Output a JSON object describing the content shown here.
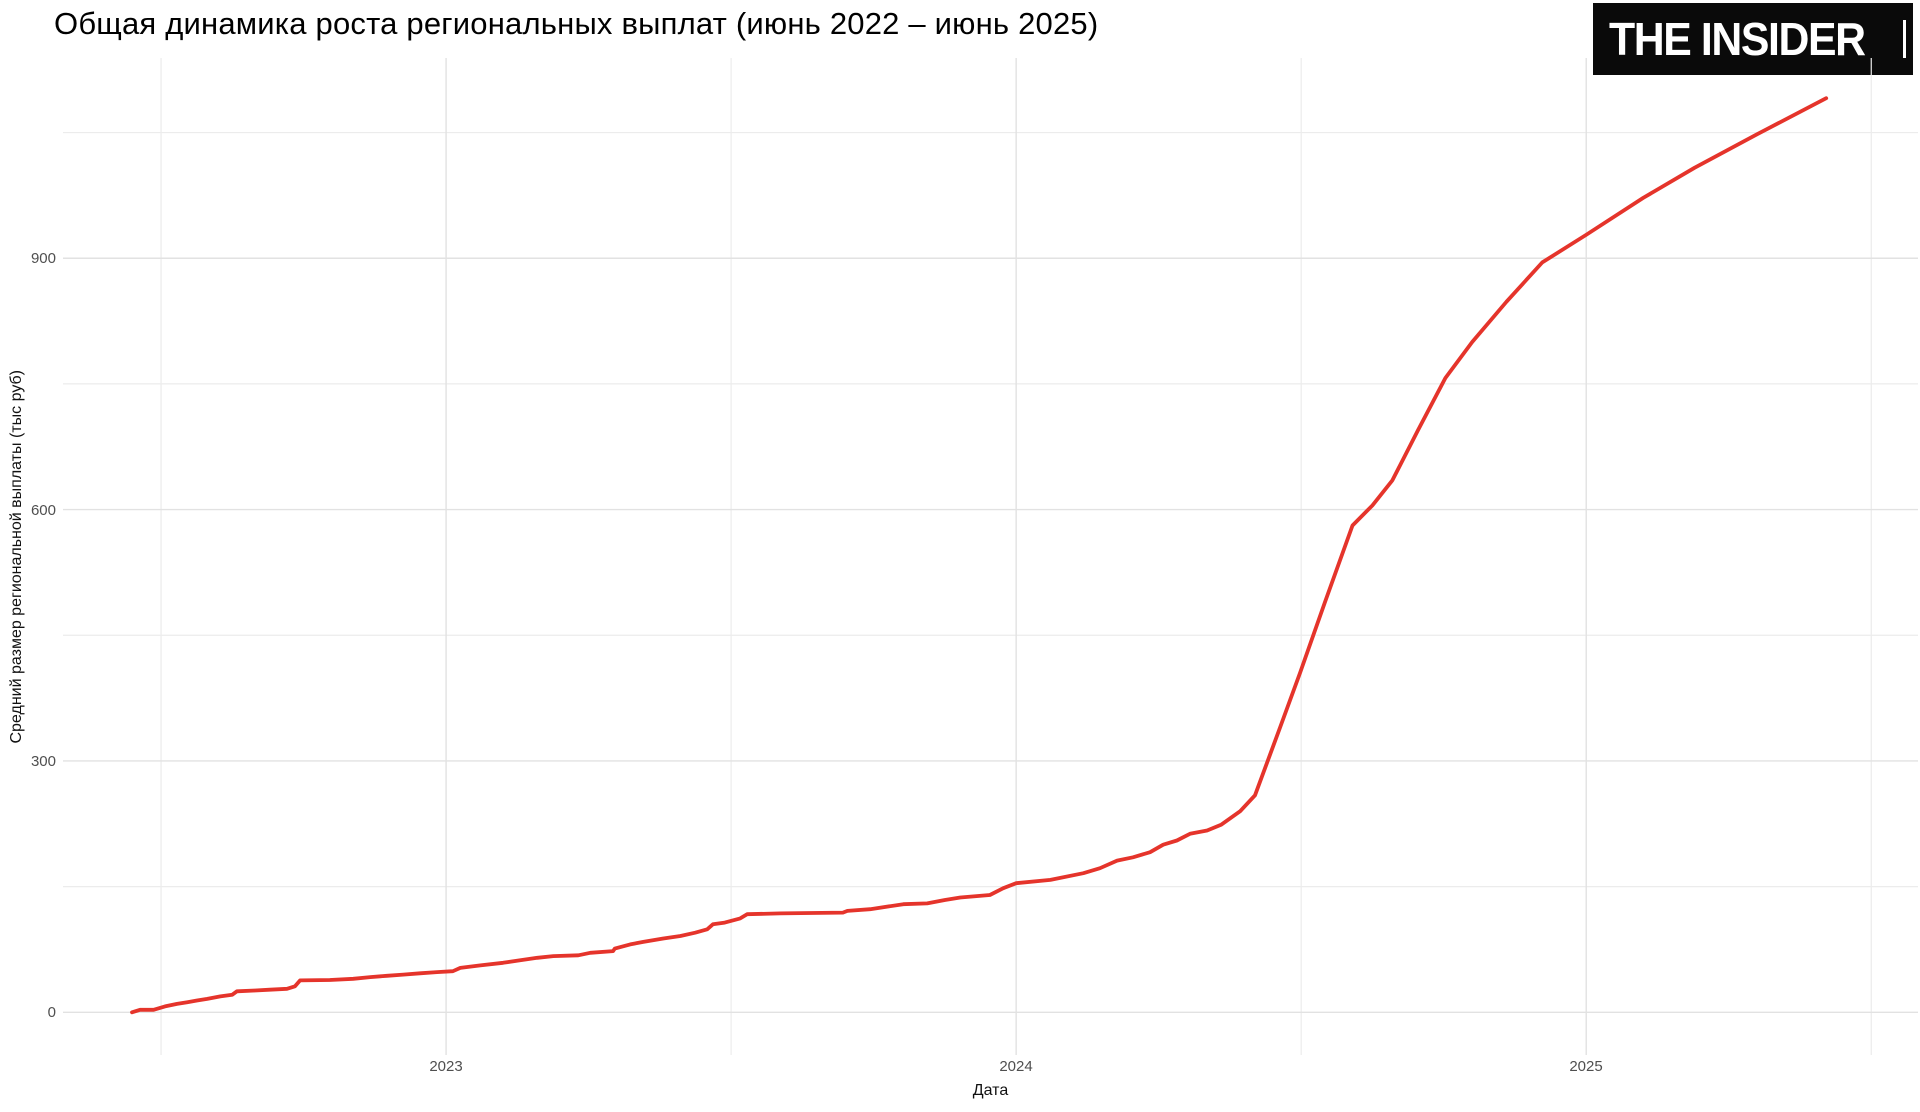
{
  "header": {
    "title": "Общая динамика роста региональных выплат (июнь 2022 – июнь 2025)",
    "logo_text": "THE INSIDER"
  },
  "chart_data": {
    "type": "line",
    "title": "Общая динамика роста региональных выплат (июнь 2022 – июнь 2025)",
    "xlabel": "Дата",
    "ylabel": "Средний размер региональной выплаты (тыс руб)",
    "x_tick_labels": [
      "2023",
      "2024",
      "2025"
    ],
    "x_ticks": [
      2023,
      2024,
      2025
    ],
    "x_minor_ticks": [
      2022.5,
      2023.5,
      2024.5,
      2025.5
    ],
    "y_tick_labels": [
      "0",
      "300",
      "600",
      "900"
    ],
    "y_ticks": [
      0,
      300,
      600,
      900
    ],
    "y_minor_ticks": [
      150,
      450,
      750,
      1050
    ],
    "x_range": [
      2022.328,
      2025.582
    ],
    "y_range": [
      -51,
      1139
    ],
    "grid": true,
    "legend": "none",
    "line_color": "#e5342b",
    "background": "#ffffff",
    "series": [
      {
        "name": "Средний размер региональной выплаты (тыс руб)",
        "points": [
          [
            2022.449,
            0
          ],
          [
            2022.463,
            3
          ],
          [
            2022.487,
            3
          ],
          [
            2022.507,
            7
          ],
          [
            2022.528,
            10
          ],
          [
            2022.546,
            12
          ],
          [
            2022.563,
            14
          ],
          [
            2022.581,
            16
          ],
          [
            2022.604,
            19
          ],
          [
            2022.625,
            21
          ],
          [
            2022.633,
            25
          ],
          [
            2022.665,
            26
          ],
          [
            2022.691,
            27
          ],
          [
            2022.721,
            28
          ],
          [
            2022.735,
            31
          ],
          [
            2022.744,
            38
          ],
          [
            2022.796,
            38.5
          ],
          [
            2022.837,
            40
          ],
          [
            2022.867,
            42
          ],
          [
            2022.896,
            43.5
          ],
          [
            2022.925,
            45
          ],
          [
            2022.954,
            46.5
          ],
          [
            2022.984,
            48
          ],
          [
            2023.012,
            49
          ],
          [
            2023.025,
            53
          ],
          [
            2023.06,
            56
          ],
          [
            2023.1,
            59
          ],
          [
            2023.13,
            62
          ],
          [
            2023.16,
            65
          ],
          [
            2023.188,
            67
          ],
          [
            2023.232,
            68
          ],
          [
            2023.253,
            71
          ],
          [
            2023.293,
            73
          ],
          [
            2023.296,
            76
          ],
          [
            2023.323,
            81
          ],
          [
            2023.346,
            84
          ],
          [
            2023.381,
            88
          ],
          [
            2023.411,
            91
          ],
          [
            2023.437,
            95
          ],
          [
            2023.458,
            99
          ],
          [
            2023.468,
            105
          ],
          [
            2023.489,
            107
          ],
          [
            2023.516,
            112
          ],
          [
            2023.528,
            117
          ],
          [
            2023.586,
            118
          ],
          [
            2023.696,
            119
          ],
          [
            2023.704,
            121
          ],
          [
            2023.744,
            123
          ],
          [
            2023.802,
            129
          ],
          [
            2023.844,
            130
          ],
          [
            2023.875,
            134
          ],
          [
            2023.902,
            137
          ],
          [
            2023.954,
            140
          ],
          [
            2023.977,
            148
          ],
          [
            2024.0,
            154
          ],
          [
            2024.06,
            158
          ],
          [
            2024.118,
            166
          ],
          [
            2024.147,
            172
          ],
          [
            2024.177,
            181
          ],
          [
            2024.205,
            185
          ],
          [
            2024.235,
            191
          ],
          [
            2024.258,
            200
          ],
          [
            2024.282,
            205
          ],
          [
            2024.305,
            213
          ],
          [
            2024.335,
            217
          ],
          [
            2024.36,
            224
          ],
          [
            2024.393,
            240
          ],
          [
            2024.419,
            259
          ],
          [
            2024.463,
            340
          ],
          [
            2024.498,
            405
          ],
          [
            2024.542,
            490
          ],
          [
            2024.59,
            581
          ],
          [
            2024.625,
            605
          ],
          [
            2024.66,
            635
          ],
          [
            2024.705,
            695
          ],
          [
            2024.753,
            757
          ],
          [
            2024.8,
            800
          ],
          [
            2024.86,
            848
          ],
          [
            2024.923,
            895
          ],
          [
            2025.0,
            928
          ],
          [
            2025.1,
            972
          ],
          [
            2025.19,
            1008
          ],
          [
            2025.3,
            1048
          ],
          [
            2025.421,
            1091
          ]
        ]
      }
    ]
  }
}
